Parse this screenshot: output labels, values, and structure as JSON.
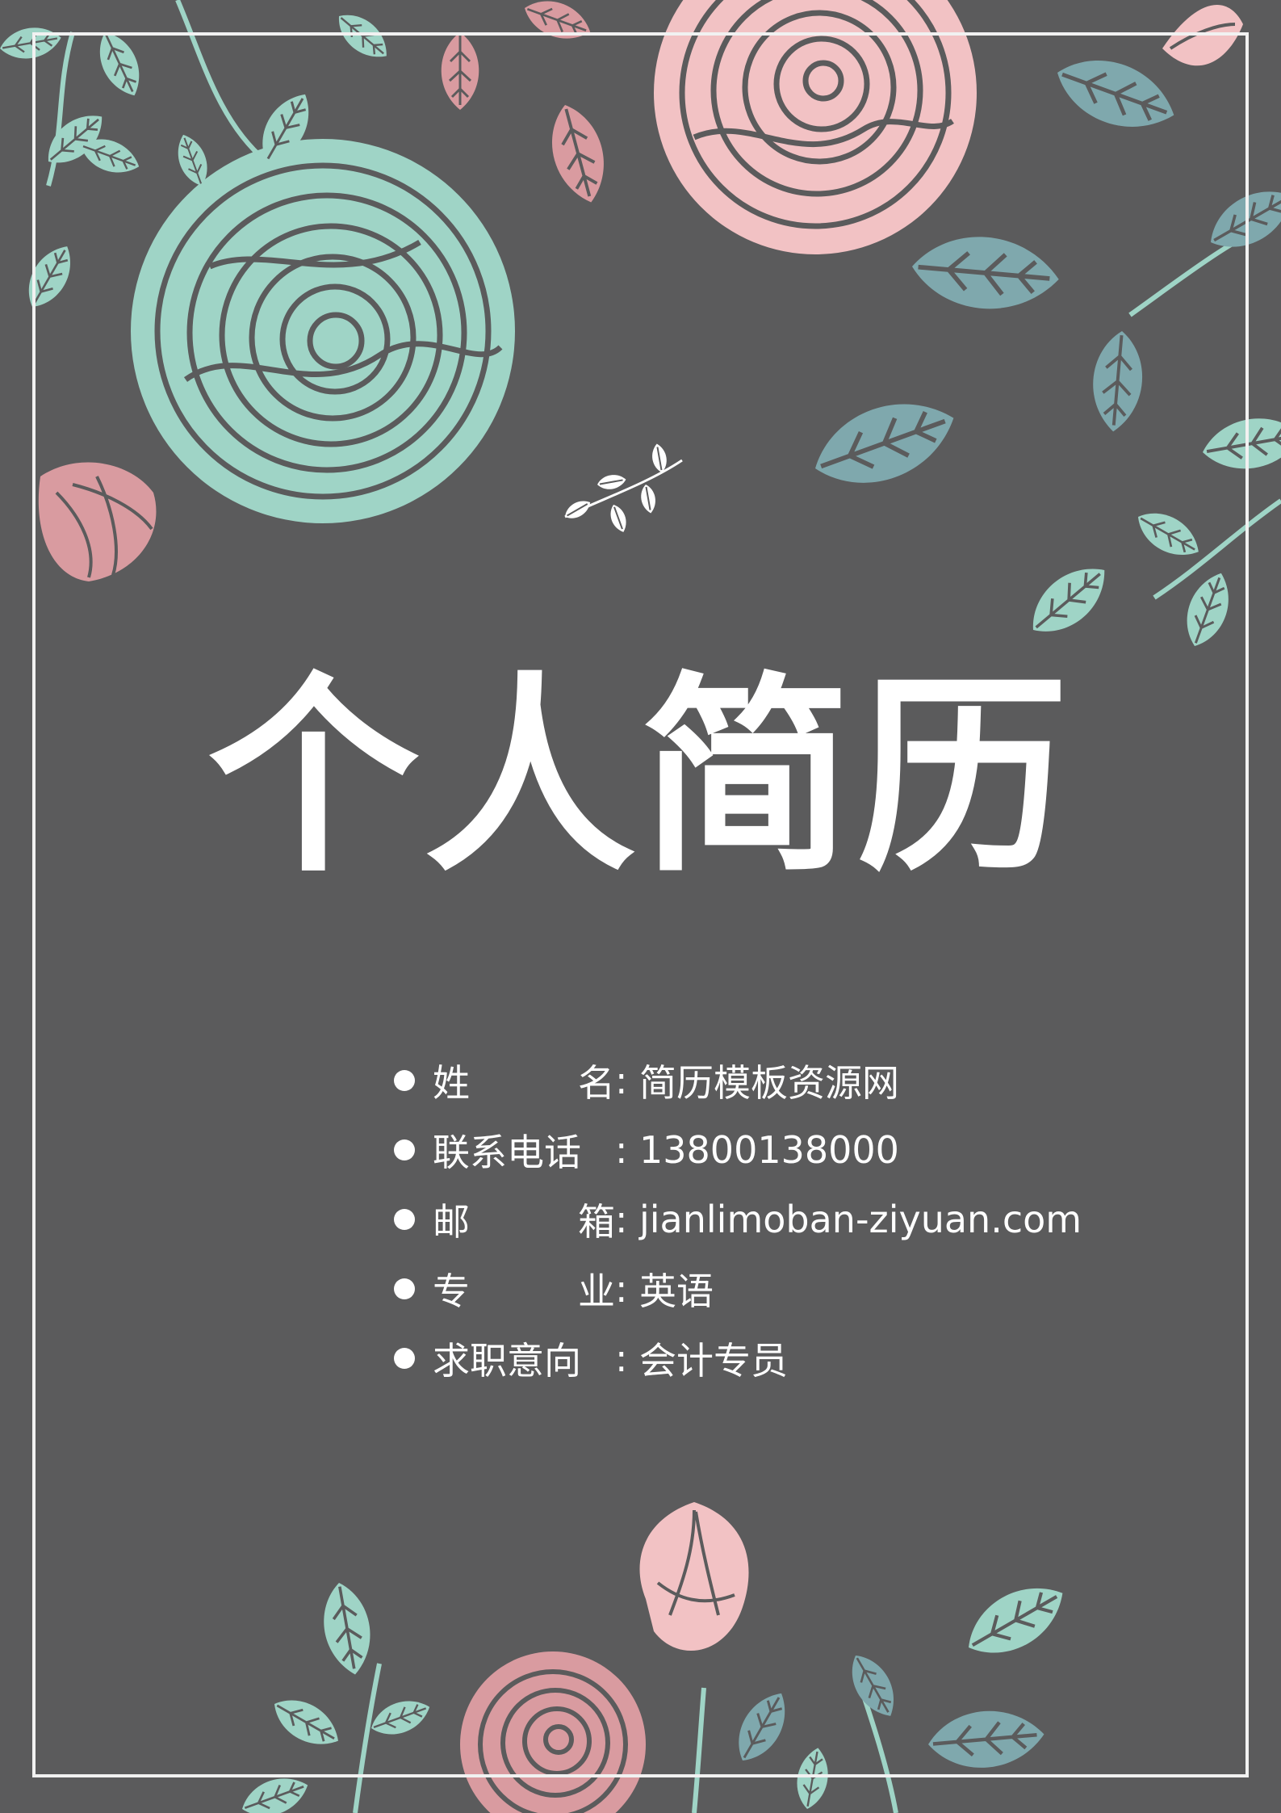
{
  "title": "个人简历",
  "info": [
    {
      "label_start": "姓",
      "label_end": "名",
      "separator": ":",
      "value": "简历模板资源网"
    },
    {
      "label_start": "联系电话",
      "label_end": "",
      "separator": ":",
      "value": "13800138000"
    },
    {
      "label_start": "邮",
      "label_end": "箱",
      "separator": ":",
      "value": "jianlimoban-ziyuan.com"
    },
    {
      "label_start": "专",
      "label_end": "业",
      "separator": ":",
      "value": "英语"
    },
    {
      "label_start": "求职意向",
      "label_end": "",
      "separator": ":",
      "value": "会计专员"
    }
  ],
  "colors": {
    "background": "#5b5b5c",
    "frame": "#f1f1f1",
    "text": "#ffffff",
    "mint": "#9fd4c6",
    "teal_leaf": "#7fa8ad",
    "pink": "#f2c2c4",
    "dusty_pink": "#d99ba0"
  }
}
